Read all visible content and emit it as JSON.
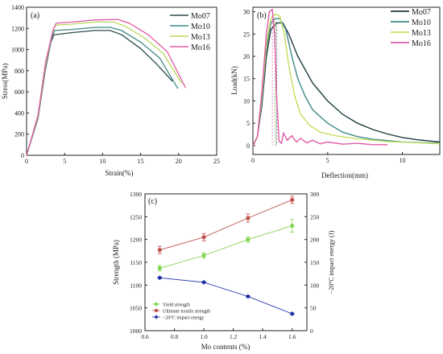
{
  "chart_data": [
    {
      "type": "line",
      "panel_label": "(a)",
      "xlabel": "Strain(%)",
      "ylabel": "Stress(MPa)",
      "xlim": [
        0,
        25
      ],
      "ylim": [
        0,
        1400
      ],
      "xticks": [
        "0",
        "5",
        "10",
        "15",
        "20",
        "25"
      ],
      "yticks": [
        "0",
        "200",
        "400",
        "600",
        "800",
        "1000",
        "1200",
        "1400"
      ],
      "legend_position": "top-right",
      "series": [
        {
          "name": "Mo07",
          "color": "#2f4b4f",
          "x": [
            0,
            1.5,
            2.5,
            3.2,
            3.6,
            6,
            9,
            11,
            12.5,
            15,
            17,
            19.2
          ],
          "y": [
            0,
            350,
            820,
            1070,
            1140,
            1160,
            1180,
            1180,
            1140,
            1010,
            870,
            700
          ]
        },
        {
          "name": "Mo10",
          "color": "#3f8a87",
          "x": [
            0,
            1.5,
            2.5,
            3.3,
            3.7,
            6,
            9,
            11,
            12.5,
            15,
            17.5,
            19.9
          ],
          "y": [
            0,
            360,
            840,
            1110,
            1180,
            1190,
            1210,
            1210,
            1180,
            1070,
            920,
            630
          ]
        },
        {
          "name": "Mo13",
          "color": "#b8d85a",
          "x": [
            0,
            1.5,
            2.5,
            3.4,
            3.8,
            6,
            9,
            11.5,
            13,
            15.5,
            18,
            20.4
          ],
          "y": [
            0,
            370,
            860,
            1160,
            1230,
            1240,
            1260,
            1260,
            1220,
            1110,
            960,
            680
          ]
        },
        {
          "name": "Mo16",
          "color": "#e05aa6",
          "x": [
            0,
            1.5,
            2.5,
            3.5,
            3.9,
            6,
            9,
            12,
            13.5,
            16,
            18.5,
            20.9
          ],
          "y": [
            0,
            380,
            880,
            1190,
            1250,
            1260,
            1280,
            1285,
            1250,
            1140,
            980,
            640
          ]
        }
      ]
    },
    {
      "type": "line",
      "panel_label": "(b)",
      "xlabel": "Deflection(mm)",
      "ylabel": "Load(kN)",
      "xlim": [
        0,
        12.5
      ],
      "ylim": [
        -2,
        31
      ],
      "xticks": [
        "0",
        "5",
        "10"
      ],
      "yticks": [
        "0",
        "5",
        "10",
        "15",
        "20",
        "25",
        "30"
      ],
      "legend_position": "top-right",
      "series": [
        {
          "name": "Mo07",
          "color": "#1e3a3e",
          "x": [
            0,
            0.3,
            0.6,
            0.9,
            1.2,
            1.6,
            2.0,
            2.4,
            3,
            4,
            5,
            6,
            7,
            8,
            9,
            10,
            11,
            12.5
          ],
          "y": [
            0,
            2,
            9,
            20,
            26,
            27.5,
            27.5,
            25,
            20,
            14,
            10,
            7,
            5,
            3.6,
            2.6,
            1.8,
            1.3,
            0.8
          ]
        },
        {
          "name": "Mo10",
          "color": "#3f8a87",
          "x": [
            0,
            0.3,
            0.6,
            0.9,
            1.2,
            1.5,
            1.8,
            2.2,
            2.6,
            3,
            3.5,
            4,
            5,
            6,
            7,
            8,
            10,
            12.5
          ],
          "y": [
            0,
            2,
            10,
            22,
            27.5,
            28.5,
            28.5,
            26,
            20,
            15,
            11,
            8,
            5,
            3,
            2,
            1.4,
            0.8,
            0.5
          ]
        },
        {
          "name": "Mo13",
          "color": "#c4df5e",
          "x": [
            0,
            0.3,
            0.6,
            0.9,
            1.2,
            1.5,
            1.8,
            2.1,
            2.4,
            2.8,
            3.2,
            3.8,
            4.5,
            5.5,
            7,
            9,
            12.5
          ],
          "y": [
            0,
            2,
            11,
            23,
            28.5,
            29.5,
            29,
            25,
            18,
            11,
            7,
            4.5,
            3,
            2.2,
            1.5,
            0.9,
            0.4
          ]
        },
        {
          "name": "Mo16",
          "color": "#e05aa6",
          "x": [
            0,
            0.3,
            0.6,
            0.9,
            1.1,
            1.3,
            1.45,
            1.6,
            1.75,
            1.9,
            2.05,
            2.3,
            2.6,
            2.9,
            3.2,
            3.6,
            4,
            4.5,
            5,
            6,
            7,
            8,
            9
          ],
          "y": [
            0,
            2,
            12,
            25,
            30,
            30.5,
            25,
            10,
            1,
            0.5,
            2.8,
            1.2,
            2.2,
            0.8,
            1.6,
            0.6,
            1.2,
            0.4,
            0.8,
            0.3,
            0.5,
            0.2,
            0.2
          ]
        }
      ]
    },
    {
      "type": "line",
      "panel_label": "(c)",
      "xlabel": "Mo contents (%)",
      "ylabel": "Strength (MPa)",
      "ylabel_right": "−20°C impact energy (J)",
      "xlim": [
        0.6,
        1.7
      ],
      "ylim": [
        1000,
        1300
      ],
      "ylim_right": [
        0,
        300
      ],
      "xticks": [
        "0.6",
        "0.8",
        "1.0",
        "1.2",
        "1.4",
        "1.6"
      ],
      "yticks": [
        "1000",
        "1050",
        "1100",
        "1150",
        "1200",
        "1250",
        "1300"
      ],
      "yticks_right": [
        "0",
        "50",
        "100",
        "150",
        "200",
        "250",
        "300"
      ],
      "legend_position": "bottom-left",
      "x": [
        0.7,
        1.0,
        1.3,
        1.6
      ],
      "series": [
        {
          "name": "Yield strength",
          "color": "#7fd64e",
          "marker": "circle",
          "axis": "left",
          "values": [
            1137,
            1165,
            1200,
            1230
          ],
          "error": [
            6,
            6,
            6,
            14
          ]
        },
        {
          "name": "Ultimate tensile strength",
          "color": "#c0504d",
          "marker": "circle",
          "axis": "left",
          "values": [
            1177,
            1205,
            1247,
            1287
          ],
          "error": [
            8,
            8,
            9,
            8
          ]
        },
        {
          "name": "−20°C impact energy",
          "color": "#1f2fa8",
          "marker": "diamond",
          "axis": "right",
          "values": [
            116,
            106,
            75,
            37
          ],
          "error": [
            2,
            2,
            2,
            2
          ]
        }
      ]
    }
  ]
}
